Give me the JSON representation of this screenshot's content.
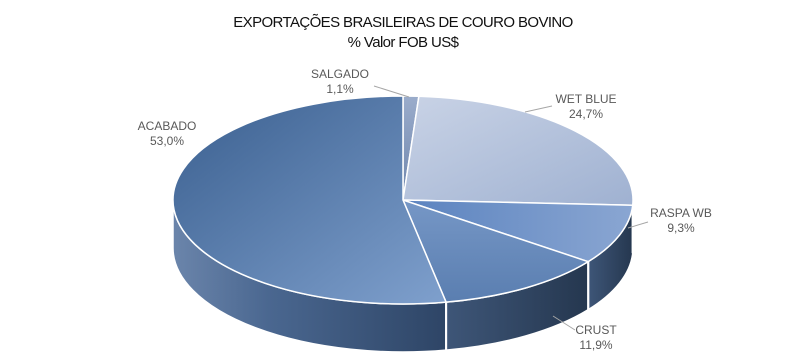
{
  "chart_data": {
    "type": "pie",
    "title": "EXPORTAÇÕES BRASILEIRAS DE COURO BOVINO",
    "subtitle": "% Valor FOB US$",
    "three_d": true,
    "data_labels": "category and percent",
    "legend": "none",
    "slices": [
      {
        "label": "SALGADO",
        "value": 1.1,
        "value_label": "1,1%",
        "color": "#7f95ba"
      },
      {
        "label": "WET BLUE",
        "value": 24.7,
        "value_label": "24,7%",
        "color": "#b5c2da"
      },
      {
        "label": "RASPA WB",
        "value": 9.3,
        "value_label": "9,3%",
        "color": "#7594c6"
      },
      {
        "label": "CRUST",
        "value": 11.9,
        "value_label": "11,9%",
        "color": "#6485b3"
      },
      {
        "label": "ACABADO",
        "value": 53.0,
        "value_label": "53,0%",
        "color": "#6689bb"
      }
    ]
  }
}
